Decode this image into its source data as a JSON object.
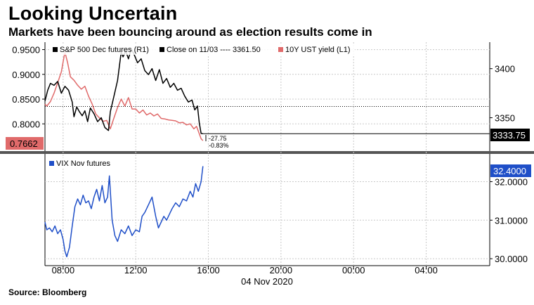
{
  "title": "Looking Uncertain",
  "subtitle": "Markets have been bouncing around as election results come in",
  "source": "Source: Bloomberg",
  "colors": {
    "spx": "#000000",
    "yield": "#e06a6a",
    "vix": "#1f4fc8",
    "grid": "#c8c8c8"
  },
  "chart_data": [
    {
      "type": "line",
      "panel": "top",
      "x_unit": "time of day, 04 Nov 2020 (hours)",
      "left_axis": {
        "ticks": [
          "0.9500",
          "0.9000",
          "0.8500",
          "0.8000"
        ],
        "ylim": [
          0.745,
          0.965
        ]
      },
      "right_axis": {
        "ticks": [
          "3400",
          "3350"
        ],
        "ylim": [
          3316,
          3427
        ]
      },
      "legend": {
        "spx": "S&P 500 Dec futures (R1)",
        "close": "Close on 11/03 ---- 3361.50",
        "yield": "10Y UST yield (L1)"
      },
      "current_left_label": "0.7662",
      "current_right_label": "3333.75",
      "change_labels": [
        "-27.75",
        "-0.83%"
      ],
      "reference_line": {
        "name": "Close on 11/03",
        "value": 3361.5
      },
      "series": [
        {
          "name": "S&P 500 Dec futures (R1)",
          "axis": "right",
          "x": [
            7.0,
            7.15,
            7.3,
            7.5,
            7.7,
            7.9,
            8.1,
            8.3,
            8.5,
            8.6,
            8.75,
            8.9,
            9.05,
            9.2,
            9.35,
            9.5,
            9.7,
            9.9,
            10.1,
            10.3,
            10.5,
            10.6,
            10.8,
            11.0,
            11.2,
            11.3,
            11.45,
            11.6,
            11.75,
            11.9,
            12.1,
            12.3,
            12.5,
            12.7,
            12.9,
            13.1,
            13.3,
            13.5,
            13.7,
            13.9,
            14.1,
            14.3,
            14.5,
            14.7,
            14.9,
            15.1,
            15.25,
            15.4,
            15.5,
            15.6,
            15.7
          ],
          "values": [
            3367,
            3378,
            3385,
            3383,
            3387,
            3375,
            3382,
            3378,
            3366,
            3351,
            3361,
            3356,
            3352,
            3357,
            3346,
            3360,
            3354,
            3346,
            3350,
            3340,
            3337,
            3356,
            3372,
            3388,
            3417,
            3412,
            3418,
            3410,
            3420,
            3415,
            3406,
            3410,
            3398,
            3394,
            3400,
            3388,
            3399,
            3385,
            3390,
            3381,
            3385,
            3378,
            3380,
            3372,
            3366,
            3368,
            3358,
            3362,
            3345,
            3334,
            3333.75
          ]
        },
        {
          "name": "10Y UST yield (L1)",
          "axis": "left",
          "x": [
            7.0,
            7.1,
            7.3,
            7.5,
            7.7,
            7.9,
            8.0,
            8.1,
            8.25,
            8.4,
            8.6,
            8.8,
            9.0,
            9.2,
            9.4,
            9.6,
            9.8,
            10.0,
            10.2,
            10.4,
            10.6,
            10.8,
            11.0,
            11.2,
            11.4,
            11.6,
            11.8,
            12.0,
            12.2,
            12.4,
            12.6,
            12.8,
            13.0,
            13.2,
            13.4,
            13.6,
            13.8,
            14.0,
            14.2,
            14.4,
            14.6,
            14.8,
            15.0,
            15.2,
            15.35,
            15.5,
            15.6,
            15.7
          ],
          "values": [
            0.84,
            0.836,
            0.845,
            0.862,
            0.883,
            0.905,
            0.925,
            0.945,
            0.923,
            0.895,
            0.888,
            0.878,
            0.87,
            0.876,
            0.856,
            0.84,
            0.82,
            0.812,
            0.805,
            0.807,
            0.79,
            0.812,
            0.833,
            0.85,
            0.836,
            0.853,
            0.83,
            0.83,
            0.822,
            0.828,
            0.818,
            0.822,
            0.816,
            0.82,
            0.811,
            0.81,
            0.808,
            0.807,
            0.806,
            0.802,
            0.803,
            0.798,
            0.8,
            0.79,
            0.795,
            0.78,
            0.77,
            0.7662
          ]
        }
      ]
    },
    {
      "type": "line",
      "panel": "bottom",
      "right_axis": {
        "ticks": [
          "32.0000",
          "31.0000",
          "30.0000"
        ],
        "ylim": [
          29.82,
          32.72
        ]
      },
      "legend": {
        "vix": "VIX Nov futures"
      },
      "current_right_label": "32.4000",
      "series": [
        {
          "name": "VIX Nov futures",
          "axis": "right",
          "x": [
            7.0,
            7.1,
            7.25,
            7.4,
            7.55,
            7.7,
            7.85,
            8.0,
            8.1,
            8.2,
            8.35,
            8.5,
            8.65,
            8.8,
            8.95,
            9.1,
            9.25,
            9.4,
            9.55,
            9.7,
            9.85,
            10.0,
            10.15,
            10.3,
            10.45,
            10.55,
            10.7,
            10.85,
            11.0,
            11.2,
            11.4,
            11.6,
            11.8,
            12.0,
            12.2,
            12.35,
            12.5,
            12.7,
            12.9,
            13.1,
            13.25,
            13.4,
            13.55,
            13.7,
            13.85,
            14.0,
            14.2,
            14.4,
            14.6,
            14.8,
            15.0,
            15.15,
            15.3,
            15.45,
            15.6,
            15.7
          ],
          "values": [
            30.95,
            30.75,
            30.8,
            30.7,
            30.85,
            30.65,
            30.75,
            30.5,
            30.2,
            30.05,
            30.3,
            30.85,
            31.35,
            31.55,
            31.4,
            31.65,
            31.45,
            31.5,
            31.3,
            31.6,
            31.8,
            31.5,
            31.9,
            31.45,
            31.6,
            32.15,
            31.0,
            30.6,
            30.45,
            30.75,
            30.65,
            30.85,
            30.6,
            30.75,
            30.7,
            31.1,
            31.2,
            31.4,
            31.6,
            31.1,
            30.8,
            30.95,
            31.1,
            31.0,
            31.15,
            31.3,
            31.45,
            31.35,
            31.55,
            31.5,
            31.75,
            31.6,
            31.95,
            31.75,
            32.0,
            32.4
          ]
        }
      ]
    }
  ],
  "x_axis": {
    "ticks": [
      {
        "hour": 8,
        "label": "08:00"
      },
      {
        "hour": 12,
        "label": "12:00"
      },
      {
        "hour": 16,
        "label": "16:00"
      },
      {
        "hour": 20,
        "label": "20:00"
      },
      {
        "hour": 24,
        "label": "00:00"
      },
      {
        "hour": 28,
        "label": "04:00"
      }
    ],
    "range": [
      7.0,
      31.5
    ],
    "date_label": "04 Nov 2020"
  }
}
